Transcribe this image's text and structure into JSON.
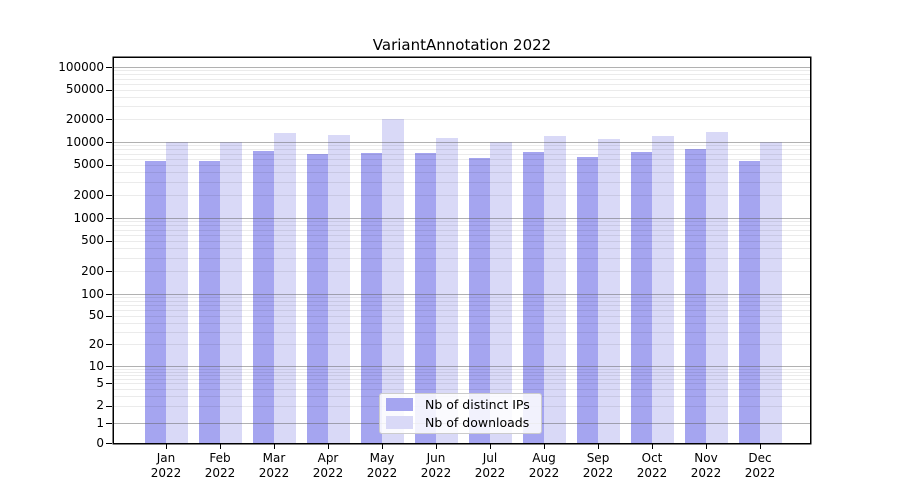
{
  "title": "VariantAnnotation 2022",
  "chart_data": {
    "type": "bar",
    "title": "VariantAnnotation 2022",
    "categories": [
      "Jan",
      "Feb",
      "Mar",
      "Apr",
      "May",
      "Jun",
      "Jul",
      "Aug",
      "Sep",
      "Oct",
      "Nov",
      "Dec"
    ],
    "year_label": "2022",
    "series": [
      {
        "name": "Nb of distinct IPs",
        "color": "#a5a5f0",
        "values": [
          5700,
          5700,
          7700,
          7000,
          7100,
          7100,
          6200,
          7300,
          6400,
          7300,
          8000,
          5700
        ]
      },
      {
        "name": "Nb of downloads",
        "color": "#d9d9f7",
        "values": [
          9900,
          9900,
          13000,
          12400,
          20500,
          11300,
          10000,
          12000,
          11000,
          12000,
          13700,
          9900
        ]
      }
    ],
    "xlabel": "",
    "ylabel": "",
    "y_axis": {
      "scale": "symlog",
      "ticks": [
        100000,
        50000,
        20000,
        10000,
        5000,
        2000,
        1000,
        500,
        200,
        100,
        50,
        20,
        10,
        5,
        2,
        1,
        0
      ],
      "major_gridline_values": [
        1,
        10,
        100,
        1000,
        10000,
        100000
      ],
      "ylim": [
        0,
        100000
      ]
    },
    "grid": "horizontal log gridlines, decade lines darker",
    "legend_position": "inside-bottom-center"
  },
  "legend": {
    "items": [
      {
        "label": "Nb of distinct IPs",
        "color": "#a5a5f0"
      },
      {
        "label": "Nb of downloads",
        "color": "#d9d9f7"
      }
    ]
  },
  "colors": {
    "plot_border": "#000000",
    "major_grid": "#b1b1b1",
    "minor_grid": "#ebebeb",
    "background": "#ffffff",
    "text": "#000000"
  }
}
